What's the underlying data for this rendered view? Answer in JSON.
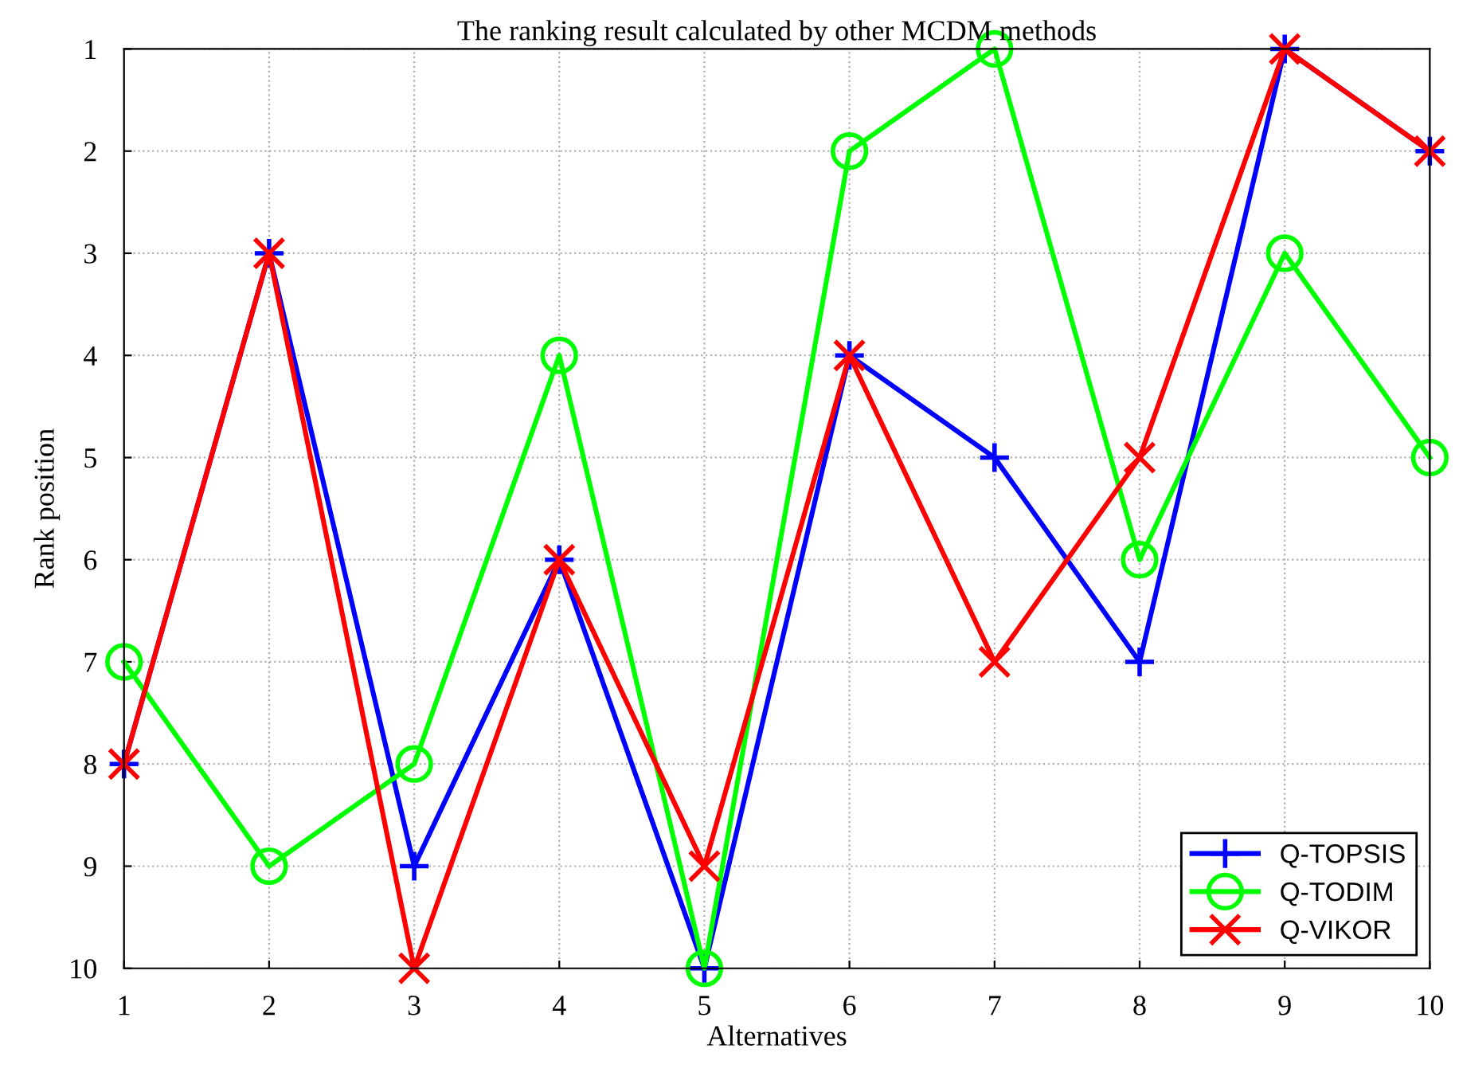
{
  "chart_data": {
    "type": "line",
    "title": "The ranking result calculated by other MCDM methods",
    "xlabel": "Alternatives",
    "ylabel": "Rank position",
    "x": [
      1,
      2,
      3,
      4,
      5,
      6,
      7,
      8,
      9,
      10
    ],
    "series": [
      {
        "name": "Q-TOPSIS",
        "color": "#0000ff",
        "marker": "plus",
        "values": [
          8,
          3,
          9,
          6,
          10,
          4,
          5,
          7,
          1,
          2
        ]
      },
      {
        "name": "Q-TODIM",
        "color": "#00ff00",
        "marker": "circle",
        "values": [
          7,
          9,
          8,
          4,
          10,
          2,
          1,
          6,
          3,
          5
        ]
      },
      {
        "name": "Q-VIKOR",
        "color": "#ff0000",
        "marker": "cross",
        "values": [
          8,
          3,
          10,
          6,
          9,
          4,
          7,
          5,
          1,
          2
        ]
      }
    ],
    "xlim": [
      1,
      10
    ],
    "xticks": [
      1,
      2,
      3,
      4,
      5,
      6,
      7,
      8,
      9,
      10
    ],
    "ylim": [
      10,
      1
    ],
    "yticks": [
      1,
      2,
      3,
      4,
      5,
      6,
      7,
      8,
      9,
      10
    ],
    "grid": true,
    "legend": "bottom right",
    "line_style": "solid"
  }
}
